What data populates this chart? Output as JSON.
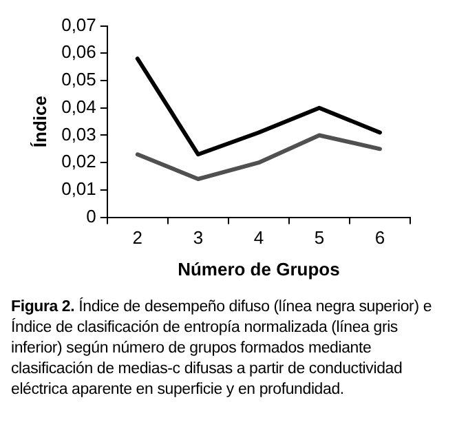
{
  "chart_data": {
    "type": "line",
    "xlabel": "Número de Grupos",
    "ylabel": "Índice",
    "categories": [
      "2",
      "3",
      "4",
      "5",
      "6"
    ],
    "series": [
      {
        "color": "#000000",
        "values": [
          0.058,
          0.023,
          0.031,
          0.04,
          0.031
        ]
      },
      {
        "color": "#505050",
        "values": [
          0.023,
          0.014,
          0.02,
          0.03,
          0.025
        ]
      }
    ],
    "ylim": [
      0,
      0.07
    ],
    "yticks": [
      0,
      {
        "value": 0.01,
        "label": "0,01"
      },
      {
        "value": 0.02,
        "label": "0,02"
      },
      {
        "value": 0.03,
        "label": "0,03"
      },
      {
        "value": 0.04,
        "label": "0,04"
      },
      {
        "value": 0.05,
        "label": "0,05"
      },
      {
        "value": 0.06,
        "label": "0,06"
      },
      {
        "value": 0.07,
        "label": "0,07"
      }
    ],
    "grid": false,
    "legend": false,
    "marker": "none",
    "line_style": "solid",
    "annotations": [
      "Figura 2.",
      "Índice de desempeño difuso (línea negra superior) e Índice de clasificación de entropía normalizada (línea gris inferior) según número de grupos formados mediante clasificación de medias-c difusas a partir de conductividad eléctrica aparente en superficie y en profundidad."
    ]
  }
}
